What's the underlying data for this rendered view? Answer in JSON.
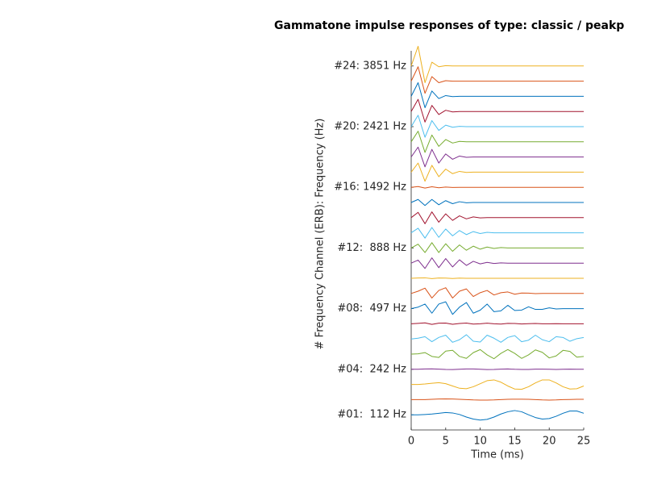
{
  "chart_data": {
    "type": "line",
    "title": "Gammatone impulse responses of type: classic / peakp",
    "xlabel": "Time (ms)",
    "ylabel": "# Frequency Channel (ERB): Frequency (Hz)",
    "xlim": [
      0,
      25
    ],
    "xticks": [
      0,
      5,
      10,
      15,
      20,
      25
    ],
    "ylim": [
      0,
      25
    ],
    "yticks": [
      {
        "value": 1,
        "label": "#01:  112 Hz"
      },
      {
        "value": 4,
        "label": "#04:  242 Hz"
      },
      {
        "value": 8,
        "label": "#08:  497 Hz"
      },
      {
        "value": 12,
        "label": "#12:  888 Hz"
      },
      {
        "value": 16,
        "label": "#16: 1492 Hz"
      },
      {
        "value": 20,
        "label": "#20: 2421 Hz"
      },
      {
        "value": 24,
        "label": "#24: 3851 Hz"
      }
    ],
    "x": [
      0,
      1,
      2,
      3,
      4,
      5,
      6,
      7,
      8,
      9,
      10,
      11,
      12,
      13,
      14,
      15,
      16,
      17,
      18,
      19,
      20,
      21,
      22,
      23,
      24,
      25
    ],
    "series": [
      {
        "color": "#0072bd",
        "values": [
          1,
          1,
          1.02,
          1.05,
          1.1,
          1.15,
          1.12,
          1.02,
          0.85,
          0.72,
          0.65,
          0.7,
          0.85,
          1.05,
          1.2,
          1.28,
          1.2,
          1,
          0.82,
          0.72,
          0.75,
          0.9,
          1.1,
          1.25,
          1.25,
          1.1
        ]
      },
      {
        "color": "#d95319",
        "values": [
          2,
          2,
          2,
          2.02,
          2.04,
          2.05,
          2.04,
          2.02,
          2,
          1.98,
          1.97,
          1.97,
          1.98,
          2,
          2.02,
          2.03,
          2.03,
          2.02,
          2,
          1.98,
          1.97,
          1.98,
          2,
          2.01,
          2.02,
          2.02
        ]
      },
      {
        "color": "#edb120",
        "values": [
          3,
          3,
          3.03,
          3.08,
          3.12,
          3.05,
          2.9,
          2.75,
          2.72,
          2.85,
          3.05,
          3.25,
          3.3,
          3.15,
          2.9,
          2.7,
          2.68,
          2.85,
          3.1,
          3.3,
          3.3,
          3.1,
          2.85,
          2.7,
          2.72,
          2.9
        ]
      },
      {
        "color": "#7e2f8e",
        "values": [
          4,
          4,
          4.02,
          4.03,
          4.01,
          3.99,
          3.98,
          4,
          4.02,
          4.02,
          4,
          3.98,
          3.99,
          4.01,
          4.02,
          4,
          3.99,
          3.99,
          4.01,
          4.01,
          4,
          3.99,
          4,
          4.01,
          4,
          4
        ]
      },
      {
        "color": "#77ac30",
        "values": [
          5,
          5.02,
          5.1,
          4.85,
          4.78,
          5.2,
          5.25,
          4.85,
          4.72,
          5.1,
          5.3,
          4.95,
          4.7,
          5.05,
          5.3,
          5.05,
          4.72,
          4.95,
          5.28,
          5.12,
          4.75,
          4.88,
          5.25,
          5.18,
          4.8,
          4.85
        ]
      },
      {
        "color": "#4dbeee",
        "values": [
          6,
          6.05,
          6.15,
          5.82,
          6.1,
          6.25,
          5.78,
          5.95,
          6.28,
          5.85,
          5.8,
          6.25,
          6.05,
          5.78,
          6.1,
          6.22,
          5.82,
          5.92,
          6.25,
          5.95,
          5.82,
          6.15,
          6.1,
          5.85,
          6.02,
          6.1
        ]
      },
      {
        "color": "#a2142f",
        "values": [
          7,
          7.03,
          7.06,
          6.96,
          7.04,
          7.05,
          6.97,
          7.02,
          7.05,
          6.98,
          7,
          7.04,
          7,
          6.98,
          7.03,
          7.02,
          6.99,
          7.01,
          7.02,
          7,
          7,
          7.01,
          7,
          7,
          7,
          7
        ]
      },
      {
        "color": "#0072bd",
        "values": [
          8,
          8.1,
          8.3,
          7.7,
          8.3,
          8.45,
          7.62,
          8.1,
          8.4,
          7.7,
          7.9,
          8.3,
          7.8,
          7.85,
          8.22,
          7.88,
          7.9,
          8.12,
          7.95,
          7.95,
          8.05,
          7.98,
          8,
          8,
          8,
          8
        ]
      },
      {
        "color": "#d95319",
        "values": [
          9,
          9.15,
          9.35,
          8.7,
          9.2,
          9.38,
          8.7,
          9.15,
          9.3,
          8.8,
          9.05,
          9.2,
          8.9,
          9.05,
          9.1,
          8.95,
          9.03,
          9.02,
          8.99,
          9,
          9,
          9,
          9,
          9,
          9,
          9
        ]
      },
      {
        "color": "#edb120",
        "values": [
          10,
          10.02,
          10.03,
          9.98,
          10.02,
          10.01,
          9.99,
          10.01,
          10,
          10,
          10,
          10,
          10,
          10,
          10,
          10,
          10,
          10,
          10,
          10,
          10,
          10,
          10,
          10,
          10,
          10
        ]
      },
      {
        "color": "#7e2f8e",
        "values": [
          11,
          11.2,
          10.65,
          11.35,
          10.7,
          11.3,
          10.75,
          11.22,
          10.85,
          11.12,
          10.95,
          11.05,
          10.98,
          11.02,
          11,
          11,
          11,
          11,
          11,
          11,
          11,
          11,
          11,
          11,
          11,
          11
        ]
      },
      {
        "color": "#77ac30",
        "values": [
          12,
          12.25,
          11.7,
          12.35,
          11.7,
          12.28,
          11.78,
          12.2,
          11.85,
          12.12,
          11.92,
          12.06,
          11.97,
          12.03,
          12,
          12,
          12,
          12,
          12,
          12,
          12,
          12,
          12,
          12,
          12,
          12
        ]
      },
      {
        "color": "#4dbeee",
        "values": [
          13,
          13.3,
          12.65,
          13.35,
          12.7,
          13.25,
          12.8,
          13.15,
          12.88,
          13.08,
          12.95,
          13.03,
          13,
          13,
          13,
          13,
          13,
          13,
          13,
          13,
          13,
          13,
          13,
          13,
          13,
          13
        ]
      },
      {
        "color": "#a2142f",
        "values": [
          14,
          14.35,
          13.6,
          14.38,
          13.7,
          14.25,
          13.82,
          14.12,
          13.92,
          14.05,
          13.98,
          14,
          14,
          14,
          14,
          14,
          14,
          14,
          14,
          14,
          14,
          14,
          14,
          14,
          14,
          14
        ]
      },
      {
        "color": "#0072bd",
        "values": [
          15,
          15.2,
          14.8,
          15.2,
          14.85,
          15.12,
          14.92,
          15.05,
          14.98,
          15,
          15,
          15,
          15,
          15,
          15,
          15,
          15,
          15,
          15,
          15,
          15,
          15,
          15,
          15,
          15,
          15
        ]
      },
      {
        "color": "#d95319",
        "values": [
          16,
          16.05,
          15.95,
          16.04,
          15.97,
          16.02,
          15.99,
          16,
          16,
          16,
          16,
          16,
          16,
          16,
          16,
          16,
          16,
          16,
          16,
          16,
          16,
          16,
          16,
          16,
          16,
          16
        ]
      },
      {
        "color": "#edb120",
        "values": [
          17,
          17.6,
          16.4,
          17.45,
          16.7,
          17.2,
          16.9,
          17.05,
          16.98,
          17,
          17,
          17,
          17,
          17,
          17,
          17,
          17,
          17,
          17,
          17,
          17,
          17,
          17,
          17,
          17,
          17
        ]
      },
      {
        "color": "#7e2f8e",
        "values": [
          18,
          18.65,
          17.35,
          18.5,
          17.6,
          18.2,
          17.85,
          18.06,
          17.98,
          18,
          18,
          18,
          18,
          18,
          18,
          18,
          18,
          18,
          18,
          18,
          18,
          18,
          18,
          18,
          18,
          18
        ]
      },
      {
        "color": "#77ac30",
        "values": [
          19,
          19.7,
          18.3,
          19.45,
          18.7,
          19.15,
          18.92,
          19.03,
          19,
          19,
          19,
          19,
          19,
          19,
          19,
          19,
          19,
          19,
          19,
          19,
          19,
          19,
          19,
          19,
          19,
          19
        ]
      },
      {
        "color": "#4dbeee",
        "values": [
          20,
          20.75,
          19.3,
          20.4,
          19.75,
          20.1,
          19.96,
          20.02,
          20,
          20,
          20,
          20,
          20,
          20,
          20,
          20,
          20,
          20,
          20,
          20,
          20,
          20,
          20,
          20,
          20,
          20
        ]
      },
      {
        "color": "#a2142f",
        "values": [
          21,
          21.8,
          20.3,
          21.4,
          20.8,
          21.08,
          20.97,
          21,
          21,
          21,
          21,
          21,
          21,
          21,
          21,
          21,
          21,
          21,
          21,
          21,
          21,
          21,
          21,
          21,
          21,
          21
        ]
      },
      {
        "color": "#0072bd",
        "values": [
          22,
          22.9,
          21.25,
          22.35,
          21.85,
          22.05,
          21.98,
          22,
          22,
          22,
          22,
          22,
          22,
          22,
          22,
          22,
          22,
          22,
          22,
          22,
          22,
          22,
          22,
          22,
          22,
          22
        ]
      },
      {
        "color": "#d95319",
        "values": [
          23,
          23.95,
          22.2,
          23.3,
          22.9,
          23.03,
          23,
          23,
          23,
          23,
          23,
          23,
          23,
          23,
          23,
          23,
          23,
          23,
          23,
          23,
          23,
          23,
          23,
          23,
          23,
          23
        ]
      },
      {
        "color": "#edb120",
        "values": [
          24,
          25.3,
          22.9,
          24.25,
          23.95,
          24.02,
          24,
          24,
          24,
          24,
          24,
          24,
          24,
          24,
          24,
          24,
          24,
          24,
          24,
          24,
          24,
          24,
          24,
          24,
          24,
          24
        ]
      }
    ]
  }
}
